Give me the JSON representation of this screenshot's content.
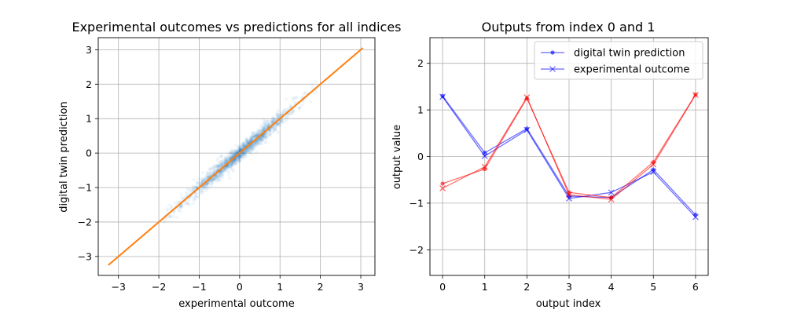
{
  "figure": {
    "colors": {
      "blue": "#0000ff",
      "red": "#ff0000",
      "scatter": "#1f77b4",
      "identity": "#ff7f0e",
      "grid": "#b0b0b0"
    }
  },
  "chart_data": [
    {
      "type": "scatter",
      "title": "Experimental outcomes vs predictions for all indices",
      "xlabel": "experimental outcome",
      "ylabel": "digital twin prediction",
      "xlim": [
        -3.5,
        3.35
      ],
      "ylim": [
        -3.55,
        3.35
      ],
      "xticks": [
        -3,
        -2,
        -1,
        0,
        1,
        2,
        3
      ],
      "yticks": [
        -3,
        -2,
        -1,
        0,
        1,
        2,
        3
      ],
      "grid": true,
      "scatter_description": "dense cloud of points tightly around y = x, roughly from -1.8 to 1.8, alpha very low",
      "identity_line": {
        "x": [
          -3.25,
          3.05
        ],
        "y": [
          -3.25,
          3.05
        ]
      }
    },
    {
      "type": "line",
      "title": "Outputs from index 0 and 1",
      "xlabel": "output index",
      "ylabel": "output value",
      "xlim": [
        -0.3,
        6.3
      ],
      "ylim": [
        -2.55,
        2.55
      ],
      "xticks": [
        0,
        1,
        2,
        3,
        4,
        5,
        6
      ],
      "yticks": [
        -2,
        -1,
        0,
        1,
        2
      ],
      "grid": true,
      "legend": {
        "placement": "top-right",
        "entries": [
          {
            "name": "digital twin prediction",
            "marker": "dot"
          },
          {
            "name": "experimental outcome",
            "marker": "x"
          }
        ]
      },
      "x": [
        0,
        1,
        2,
        3,
        4,
        5,
        6
      ],
      "series": [
        {
          "index": 0,
          "kind": "digital twin prediction",
          "color": "blue",
          "marker": "dot",
          "values": [
            1.3,
            0.08,
            0.6,
            -0.85,
            -0.88,
            -0.28,
            -1.25
          ]
        },
        {
          "index": 0,
          "kind": "experimental outcome",
          "color": "blue",
          "marker": "x",
          "values": [
            1.28,
            0.01,
            0.57,
            -0.9,
            -0.77,
            -0.33,
            -1.3
          ]
        },
        {
          "index": 1,
          "kind": "digital twin prediction",
          "color": "red",
          "marker": "dot",
          "values": [
            -0.58,
            -0.27,
            1.25,
            -0.77,
            -0.88,
            -0.12,
            1.33
          ]
        },
        {
          "index": 1,
          "kind": "experimental outcome",
          "color": "red",
          "marker": "x",
          "values": [
            -0.68,
            -0.22,
            1.27,
            -0.82,
            -0.92,
            -0.17,
            1.32
          ]
        }
      ]
    }
  ]
}
